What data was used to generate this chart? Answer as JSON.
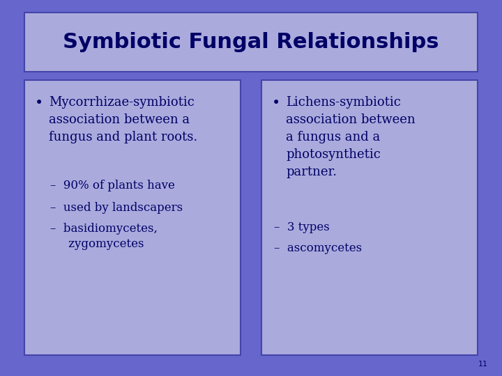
{
  "title": "Symbiotic Fungal Relationships",
  "background_color": "#6666cc",
  "title_box_color": "#aaaadd",
  "content_box_color": "#aaaadd",
  "title_fontsize": 22,
  "content_fontsize": 13,
  "sub_fontsize": 12,
  "text_color": "#000066",
  "left_bullet_main": "Mycorrhizae-symbiotic\nassociation between a\nfungus and plant roots.",
  "left_subs": [
    "–  90% of plants have",
    "–  used by landscapers",
    "–  basidiomycetes,\n     zygomycetes"
  ],
  "right_bullet_main": "Lichens-symbiotic\nassociation between\na fungus and a\nphotosynthetic\npartner.",
  "right_subs": [
    "–  3 types",
    "–  ascomycetes"
  ]
}
